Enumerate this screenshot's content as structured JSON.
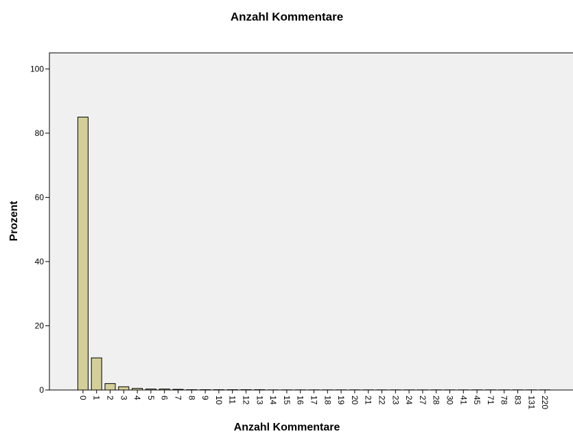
{
  "chart_data": {
    "type": "bar",
    "title": "Anzahl Kommentare",
    "x_label": "Anzahl Kommentare",
    "y_label": "Prozent",
    "categories": [
      "0",
      "1",
      "2",
      "3",
      "4",
      "5",
      "6",
      "7",
      "8",
      "9",
      "10",
      "11",
      "12",
      "13",
      "14",
      "15",
      "16",
      "17",
      "18",
      "19",
      "20",
      "21",
      "22",
      "23",
      "24",
      "27",
      "28",
      "30",
      "41",
      "45",
      "71",
      "78",
      "83",
      "131",
      "220"
    ],
    "values": [
      85,
      10,
      2,
      1,
      0.5,
      0.3,
      0.3,
      0.2,
      0.1,
      0.1,
      0.1,
      0.1,
      0.1,
      0.1,
      0.05,
      0.05,
      0.05,
      0.05,
      0.05,
      0.05,
      0.05,
      0.05,
      0.05,
      0.05,
      0.05,
      0.05,
      0.05,
      0.05,
      0.05,
      0.05,
      0.05,
      0.05,
      0.05,
      0.05,
      0.05
    ],
    "color": "#d4cf99",
    "ylim": [
      0,
      105
    ],
    "yticks": [
      0,
      20,
      40,
      60,
      80,
      100
    ],
    "grid": false
  }
}
